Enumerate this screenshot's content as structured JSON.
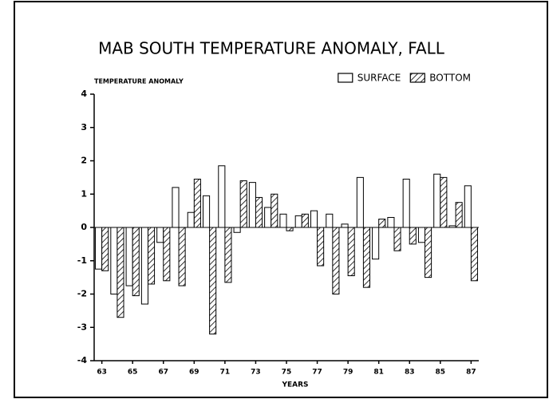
{
  "chart_data": {
    "type": "bar",
    "title": "MAB SOUTH TEMPERATURE ANOMALY, FALL",
    "y_label": "TEMPERATURE ANOMALY",
    "x_label": "YEARS",
    "categories": [
      "63",
      null,
      "65",
      null,
      "67",
      null,
      "69",
      null,
      "71",
      null,
      "73",
      null,
      "75",
      null,
      "77",
      null,
      "79",
      null,
      "81",
      null,
      "83",
      null,
      "85",
      null,
      "87"
    ],
    "series": [
      {
        "name": "SURFACE",
        "color": "#ffffff",
        "hatch": false,
        "values": [
          -1.25,
          -2.0,
          -1.75,
          -2.3,
          -0.45,
          1.2,
          0.45,
          0.95,
          1.85,
          -0.15,
          1.35,
          0.6,
          0.4,
          0.35,
          0.5,
          0.4,
          0.1,
          1.5,
          -0.95,
          0.3,
          1.45,
          -0.45,
          1.6,
          0.05,
          1.25
        ]
      },
      {
        "name": "BOTTOM",
        "color": "#000000",
        "hatch": true,
        "values": [
          -1.3,
          -2.7,
          -2.05,
          -1.7,
          -1.6,
          -1.75,
          1.45,
          -3.2,
          -1.65,
          1.4,
          0.9,
          1.0,
          -0.1,
          0.4,
          -1.15,
          -2.0,
          -1.45,
          -1.8,
          0.25,
          -0.7,
          -0.5,
          -1.5,
          1.5,
          0.75,
          -1.6
        ]
      }
    ],
    "ylim": [
      -4,
      4
    ],
    "yticks": [
      -4,
      -3,
      -2,
      -1,
      0,
      1,
      2,
      3,
      4
    ],
    "legend": "upper right"
  }
}
